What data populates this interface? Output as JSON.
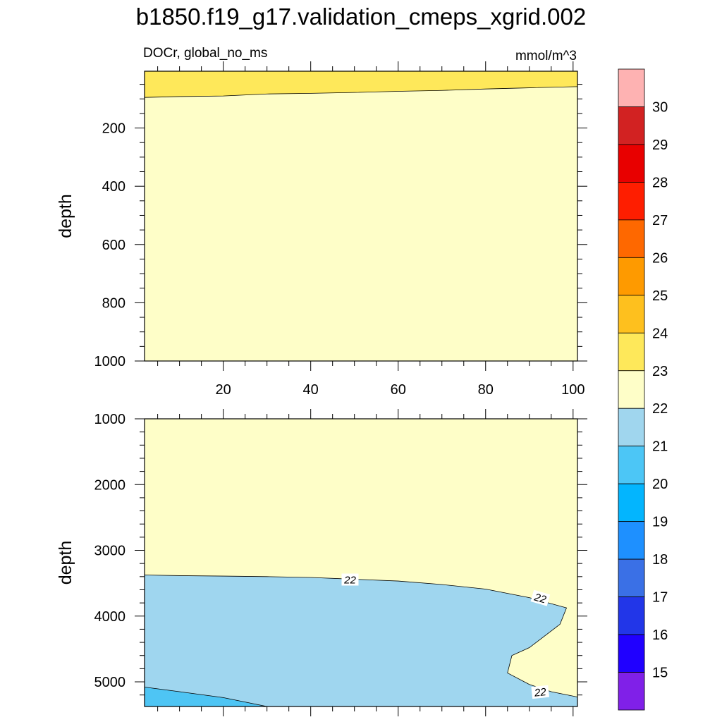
{
  "title": "b1850.f19_g17.validation_cmeps_xgrid.002",
  "subtitle_left": "DOCr, global_no_ms",
  "subtitle_right": "mmol/m^3",
  "chart_data": [
    {
      "type": "heatmap",
      "panel": "upper",
      "xlabel": "",
      "ylabel": "depth",
      "xlim": [
        2,
        101
      ],
      "ylim": [
        5,
        1000
      ],
      "y_inverted": true,
      "x_ticks": [
        20,
        40,
        60,
        80,
        100
      ],
      "y_ticks": [
        200,
        400,
        600,
        800,
        1000
      ],
      "regions": [
        {
          "range": "22-23",
          "color": "#fefec8",
          "boundary": "background"
        },
        {
          "range": "23-24",
          "color": "#fee85a",
          "boundary": [
            [
              2,
              95
            ],
            [
              10,
              92
            ],
            [
              20,
              90
            ],
            [
              30,
              83
            ],
            [
              40,
              81
            ],
            [
              50,
              78
            ],
            [
              60,
              74
            ],
            [
              70,
              71
            ],
            [
              80,
              66
            ],
            [
              90,
              62
            ],
            [
              101,
              58
            ]
          ],
          "side": "above"
        }
      ]
    },
    {
      "type": "heatmap",
      "panel": "lower",
      "xlabel": "",
      "ylabel": "depth",
      "xlim": [
        2,
        101
      ],
      "ylim": [
        1000,
        5375
      ],
      "y_inverted": true,
      "y_ticks": [
        1000,
        2000,
        3000,
        4000,
        5000
      ],
      "regions": [
        {
          "range": "22-23",
          "color": "#fefec8",
          "boundary": "background"
        },
        {
          "range": "21-22",
          "color": "#9fd6ef",
          "polygon": [
            [
              2,
              3375
            ],
            [
              10,
              3385
            ],
            [
              20,
              3392
            ],
            [
              30,
              3400
            ],
            [
              40,
              3413
            ],
            [
              50,
              3440
            ],
            [
              60,
              3467
            ],
            [
              70,
              3520
            ],
            [
              80,
              3590
            ],
            [
              90,
              3720
            ],
            [
              98.5,
              3875
            ],
            [
              97,
              4125
            ],
            [
              90,
              4480
            ],
            [
              86,
              4600
            ],
            [
              85,
              4865
            ],
            [
              90,
              5040
            ],
            [
              95,
              5150
            ],
            [
              101,
              5230
            ],
            [
              101,
              5375
            ],
            [
              2,
              5375
            ]
          ]
        },
        {
          "range": "20-21",
          "color": "#4ec5f4",
          "polygon": [
            [
              2,
              5080
            ],
            [
              10,
              5150
            ],
            [
              20,
              5240
            ],
            [
              30,
              5375
            ],
            [
              2,
              5375
            ]
          ]
        }
      ],
      "contour_labels": [
        {
          "text": "22",
          "x": 49,
          "y": 3450,
          "angle": 0
        },
        {
          "text": "22",
          "x": 92.5,
          "y": 3730,
          "angle": 16
        },
        {
          "text": "22",
          "x": 92.5,
          "y": 5160,
          "angle": -6
        }
      ]
    }
  ],
  "colorbar": {
    "tick_labels": [
      "15",
      "16",
      "17",
      "18",
      "19",
      "20",
      "21",
      "22",
      "23",
      "24",
      "25",
      "26",
      "27",
      "28",
      "29",
      "30"
    ],
    "colors": [
      "#8020e8",
      "#2000ff",
      "#2236e8",
      "#3a70e6",
      "#1e90ff",
      "#03b5fe",
      "#4cc6f6",
      "#a0d6ee",
      "#fefec8",
      "#fee85a",
      "#fec01e",
      "#fe9a00",
      "#fe6800",
      "#fe1e00",
      "#e80000",
      "#d22222",
      "#feb2b2"
    ]
  }
}
